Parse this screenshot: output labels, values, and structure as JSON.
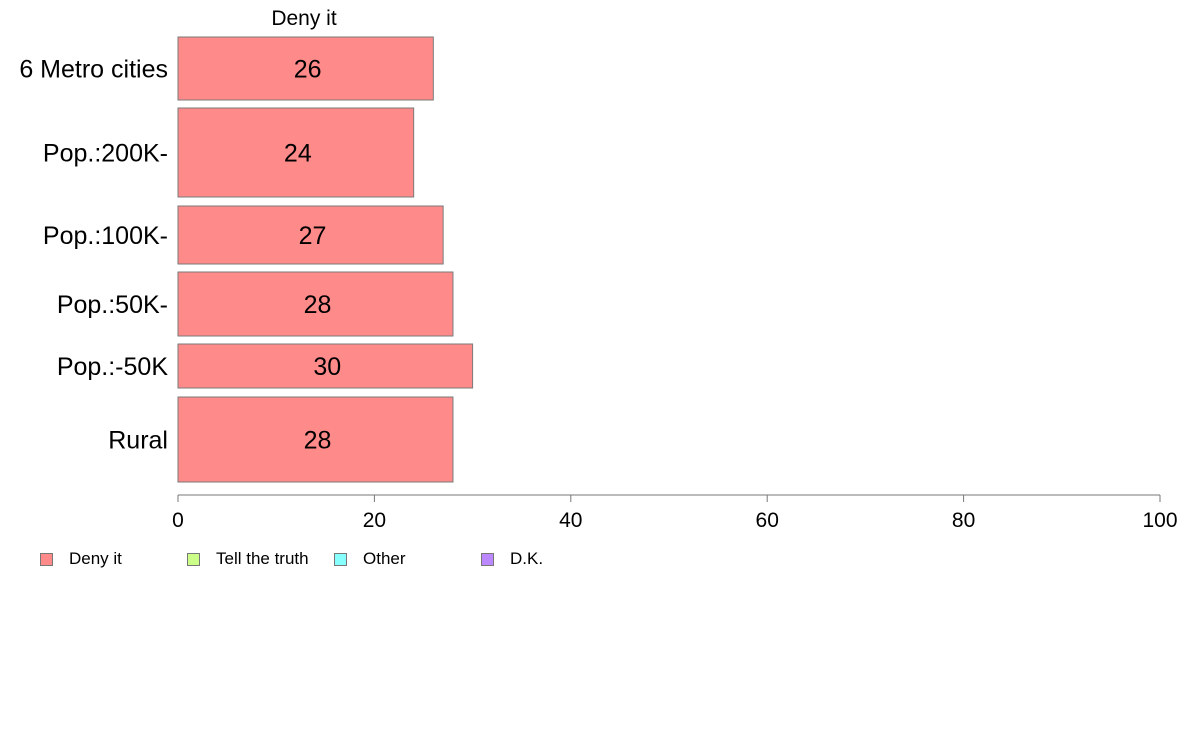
{
  "chart_data": {
    "type": "bar",
    "orientation": "horizontal",
    "panel_title": "Deny it",
    "categories": [
      "6 Metro cities",
      "Pop.:200K-",
      "Pop.:100K-",
      "Pop.:50K-",
      "Pop.:-50K",
      "Rural"
    ],
    "values": [
      26,
      24,
      27,
      28,
      30,
      28
    ],
    "value_labels": [
      "26",
      "24",
      "27",
      "28",
      "30",
      "28"
    ],
    "xlim": [
      0,
      100
    ],
    "xticks": [
      0,
      20,
      40,
      60,
      80,
      100
    ],
    "xtick_labels": [
      "0",
      "20",
      "40",
      "60",
      "80",
      "100"
    ],
    "grid": false,
    "legend_position": "bottom-left",
    "series": [
      {
        "name": "Deny it",
        "color": "#ff8a8a"
      },
      {
        "name": "Tell the truth",
        "color": "#ccff88"
      },
      {
        "name": "Other",
        "color": "#88ffff"
      },
      {
        "name": "D.K.",
        "color": "#bb88ff"
      }
    ]
  }
}
